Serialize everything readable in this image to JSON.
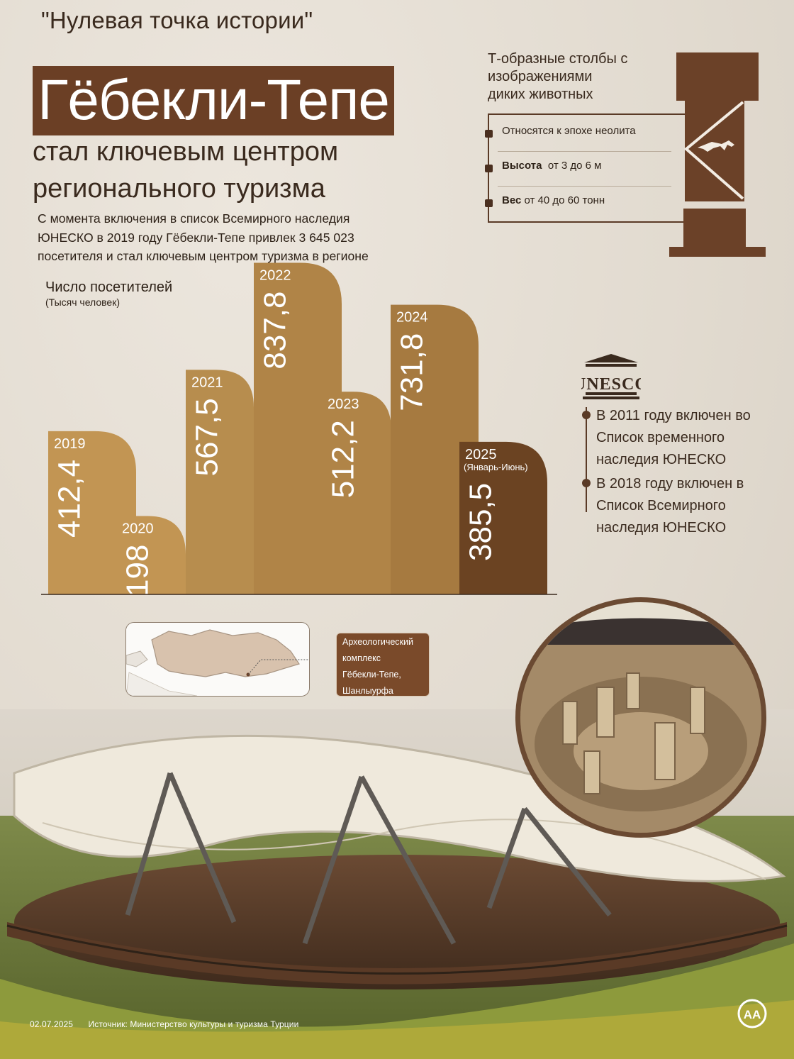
{
  "header": {
    "kicker": "\"Нулевая точка истории\"",
    "title": "Гёбекли-Тепе",
    "subtitle_line1": "стал ключевым центром",
    "subtitle_line2": "регионального туризма",
    "intro_line1": "С момента включения в список Всемирного наследия",
    "intro_line2": "ЮНЕСКО в 2019 году Гёбекли-Тепе привлек 3 645 023",
    "intro_line3": "посетителя и стал ключевым центром туризма в регионе"
  },
  "chart_data": {
    "type": "bar",
    "title": "Число посетителей",
    "unit": "(Тысяч человек)",
    "categories": [
      "2019",
      "2020",
      "2021",
      "2022",
      "2023",
      "2024",
      "2025"
    ],
    "category_notes": [
      "",
      "",
      "",
      "",
      "",
      "",
      "(Январь-Июнь)"
    ],
    "values": [
      412.4,
      198,
      567.5,
      837.8,
      512.2,
      731.8,
      385.5
    ],
    "value_labels": [
      "412,4",
      "198",
      "567,5",
      "837,8",
      "512,2",
      "731,8",
      "385,5"
    ],
    "colors": [
      "#c29553",
      "#c29553",
      "#b78d4e",
      "#b08447",
      "#b08447",
      "#a67a40",
      "#6b4322"
    ]
  },
  "pillars": {
    "title_line1": "Т-образные столбы с",
    "title_line2": "изображениями",
    "title_line3": "диких животных",
    "fact1": "Относятся к эпохе неолита",
    "fact2_label": "Высота",
    "fact2_value": "от 3 до 6 м",
    "fact3_label": "Вес",
    "fact3_value": "от 40 до 60 тонн"
  },
  "unesco": {
    "logo_text": "UNESCO",
    "item1_line1": "В 2011 году включен во",
    "item1_line2": "Список временного",
    "item1_line3": "наследия ЮНЕСКО",
    "item2_line1": "В 2018 году включен в",
    "item2_line2": "Список Всемирного",
    "item2_line3": "наследия ЮНЕСКО"
  },
  "map": {
    "callout_line1": "Археологический",
    "callout_line2": "комплекс",
    "callout_line3": "Гёбекли-Тепе,",
    "callout_line4": "Шанлыурфа"
  },
  "footer": {
    "date": "02.07.2025",
    "source": "Источник: Министерство культуры и туризма Турции",
    "logo": "AA"
  }
}
